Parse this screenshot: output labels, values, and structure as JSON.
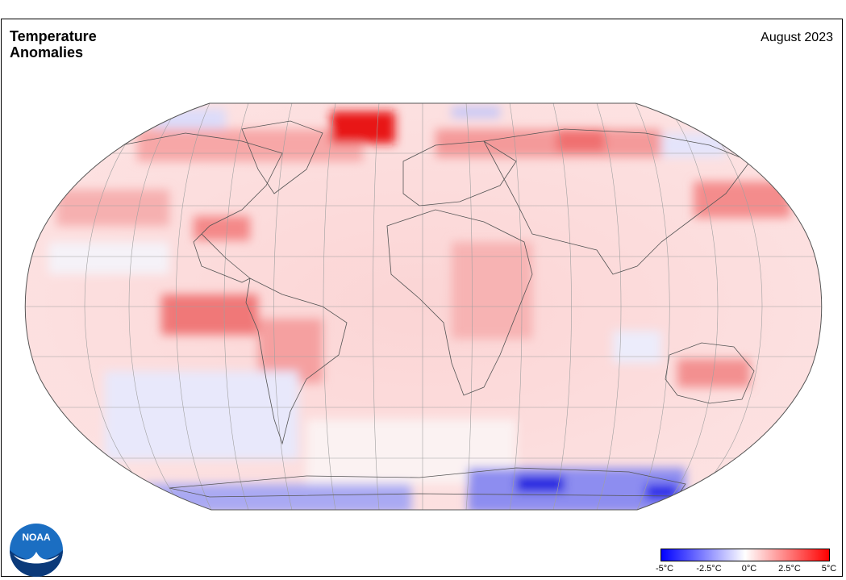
{
  "map": {
    "title_line1": "Temperature",
    "title_line2": "Anomalies",
    "period": "August 2023",
    "projection": "Robinson",
    "grid_lines": true,
    "logo": {
      "icon": "noaa-logo",
      "text": "NOAA"
    },
    "legend": {
      "tick_labels": [
        "-5°C",
        "-2.5°C",
        "0°C",
        "2.5°C",
        "5°C"
      ],
      "range": [
        -5,
        5
      ],
      "colors": {
        "cold": "#0000ff",
        "neutral": "#ffffff",
        "warm": "#ff0000"
      }
    },
    "colors": {
      "grid": "#a0a0a0",
      "coast": "#555555"
    }
  }
}
